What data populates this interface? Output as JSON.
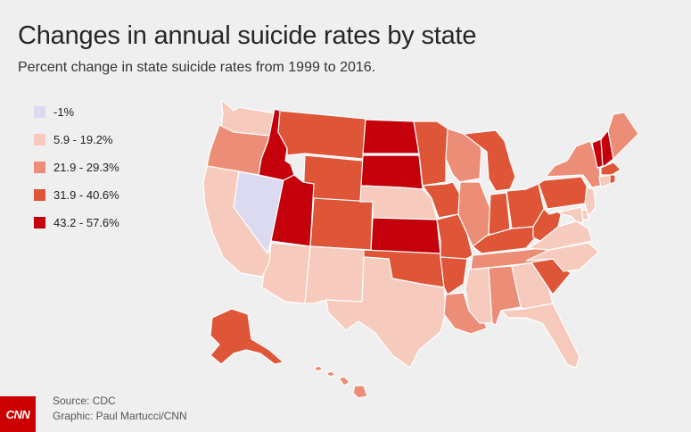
{
  "title": "Changes in annual suicide rates by state",
  "subtitle": "Percent change in state suicide rates from 1999 to 2016.",
  "legend": [
    {
      "label": "-1%",
      "color": "#dcdaf1"
    },
    {
      "label": "5.9 - 19.2%",
      "color": "#f6cbbd"
    },
    {
      "label": "21.9 - 29.3%",
      "color": "#ec8e77"
    },
    {
      "label": "31.9 - 40.6%",
      "color": "#de5538"
    },
    {
      "label": "43.2 - 57.6%",
      "color": "#c4000b"
    }
  ],
  "states": {
    "WA": 1,
    "OR": 2,
    "CA": 1,
    "NV": 0,
    "ID": 4,
    "MT": 3,
    "WY": 3,
    "UT": 4,
    "AZ": 1,
    "CO": 3,
    "NM": 1,
    "ND": 4,
    "SD": 4,
    "NE": 1,
    "KS": 4,
    "OK": 3,
    "TX": 1,
    "MN": 3,
    "IA": 3,
    "MO": 3,
    "AR": 3,
    "LA": 2,
    "WI": 2,
    "IL": 2,
    "MI": 3,
    "IN": 3,
    "OH": 3,
    "KY": 3,
    "TN": 2,
    "MS": 1,
    "AL": 2,
    "GA": 1,
    "FL": 1,
    "SC": 3,
    "NC": 1,
    "VA": 1,
    "WV": 3,
    "PA": 3,
    "NY": 2,
    "VT": 4,
    "NH": 4,
    "ME": 2,
    "MA": 3,
    "CT": 1,
    "RI": 3,
    "NJ": 1,
    "DE": 1,
    "MD": 1,
    "AK": 3,
    "HI": 2
  },
  "source": "Source: CDC",
  "graphic": "Graphic: Paul Martucci/CNN",
  "logo": "CNN"
}
